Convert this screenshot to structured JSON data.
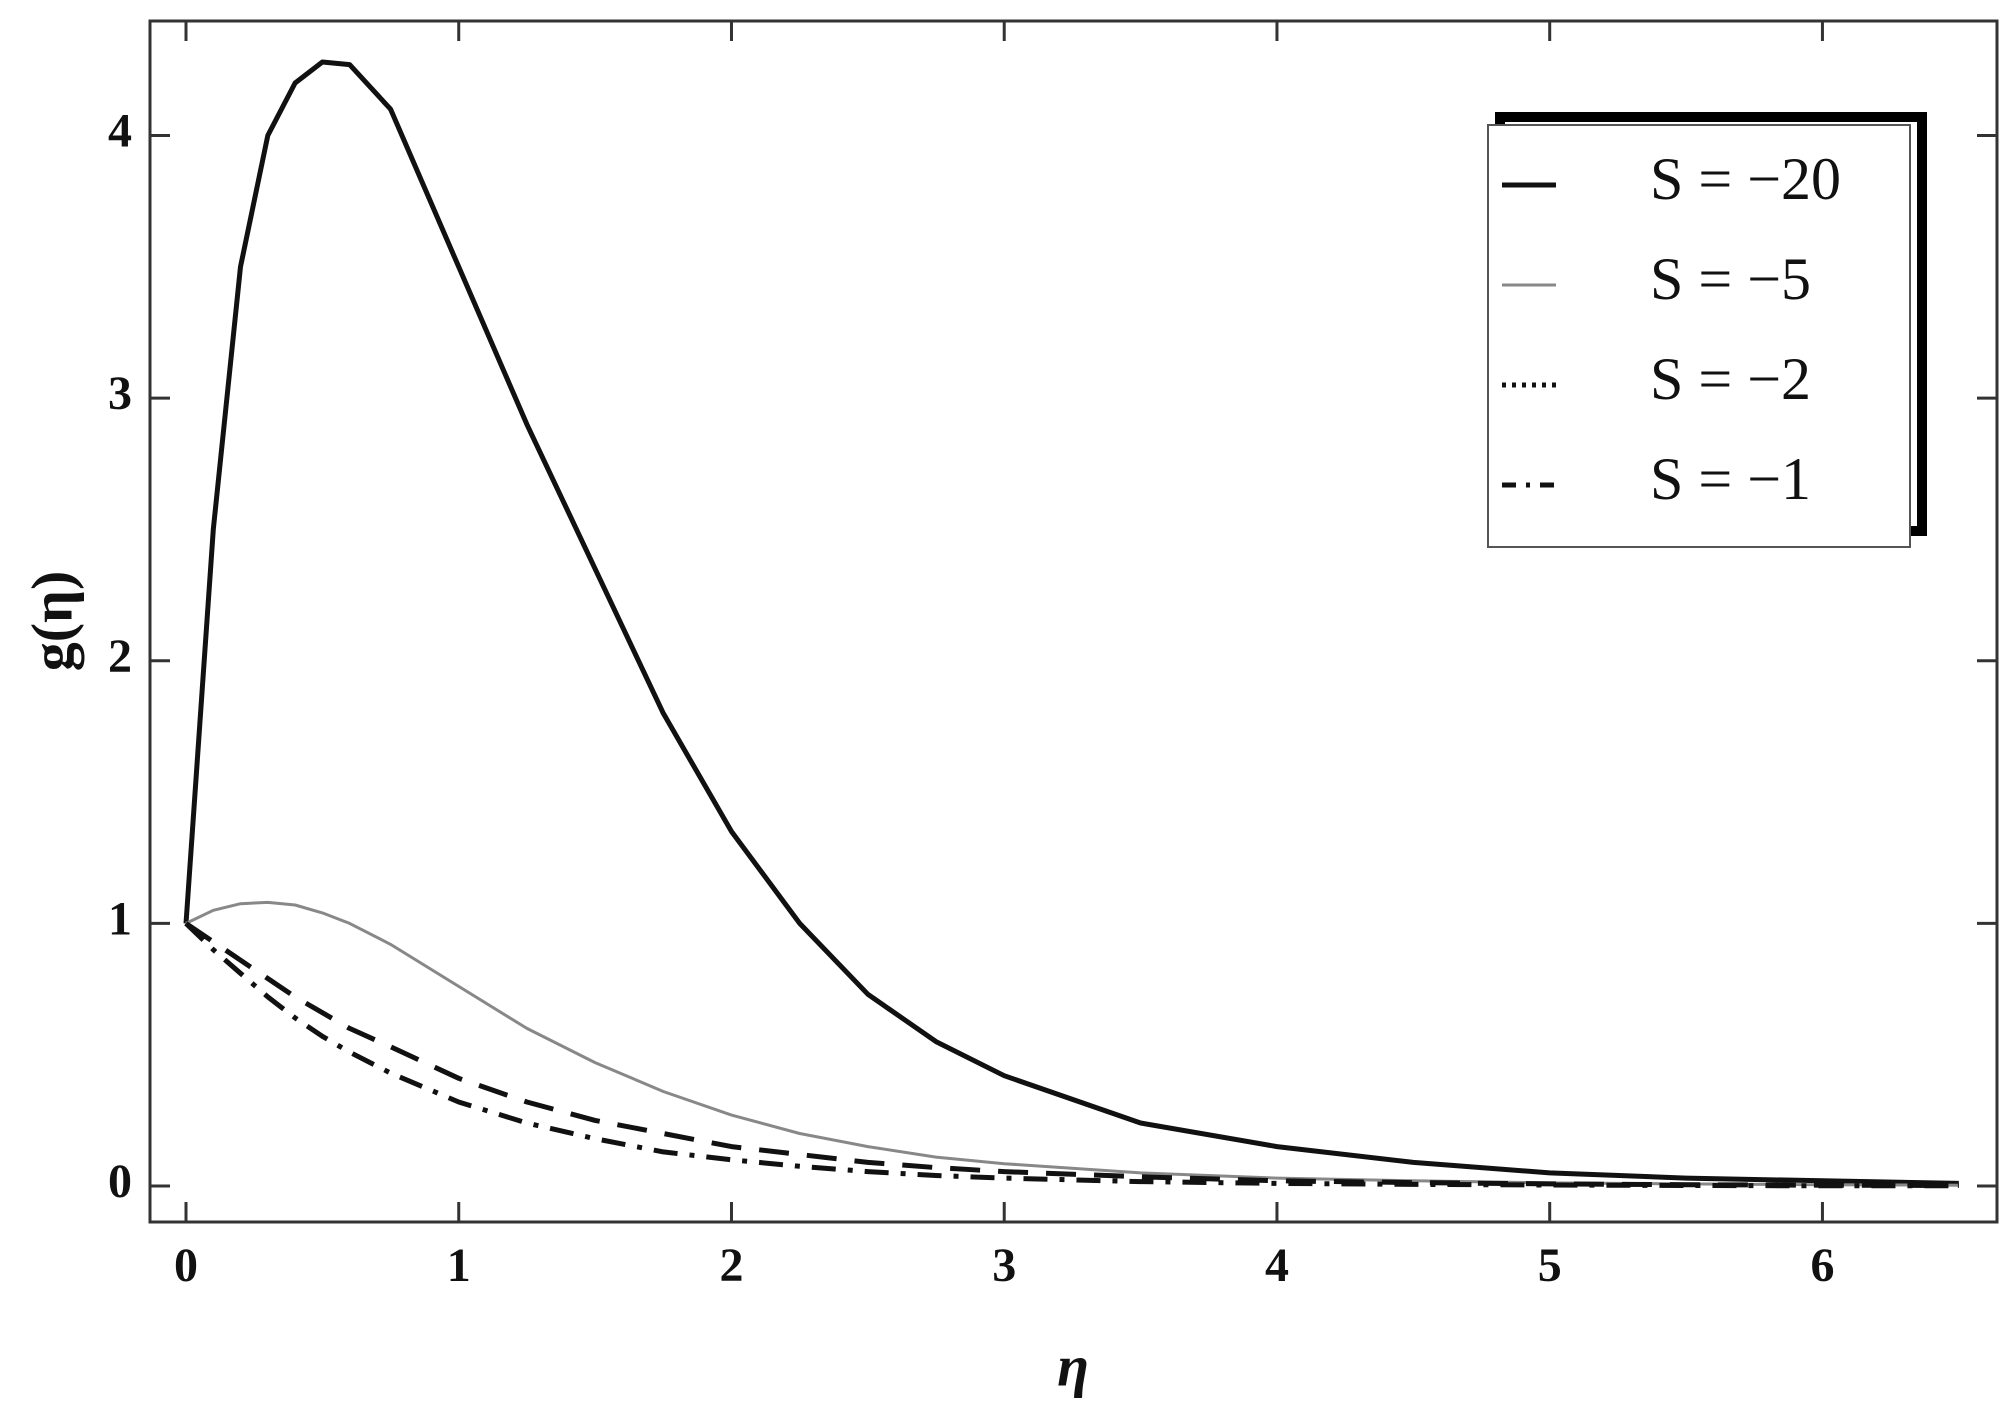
{
  "chart_data": {
    "type": "line",
    "x_label": "η",
    "y_label": "g(η)",
    "x": [
      0,
      0.1,
      0.2,
      0.3,
      0.4,
      0.5,
      0.6,
      0.75,
      1,
      1.25,
      1.5,
      1.75,
      2,
      2.25,
      2.5,
      2.75,
      3,
      3.5,
      4,
      4.5,
      5,
      5.5,
      6,
      6.5
    ],
    "series": [
      {
        "name": "S = −20",
        "color": "#111111",
        "style": "solid",
        "width": 5,
        "values": [
          1,
          2.5,
          3.5,
          4.0,
          4.2,
          4.28,
          4.27,
          4.1,
          3.5,
          2.9,
          2.35,
          1.8,
          1.35,
          1.0,
          0.73,
          0.55,
          0.42,
          0.24,
          0.15,
          0.09,
          0.05,
          0.03,
          0.02,
          0.01
        ]
      },
      {
        "name": "S = −5",
        "color": "#888888",
        "style": "solid",
        "width": 3,
        "values": [
          1,
          1.05,
          1.075,
          1.08,
          1.07,
          1.04,
          1.0,
          0.92,
          0.76,
          0.6,
          0.47,
          0.36,
          0.27,
          0.2,
          0.15,
          0.11,
          0.085,
          0.05,
          0.03,
          0.02,
          0.012,
          0.008,
          0.005,
          0.003
        ]
      },
      {
        "name": "S = −2",
        "color": "#111111",
        "style": "dashed",
        "width": 5,
        "values": [
          1,
          0.93,
          0.86,
          0.79,
          0.72,
          0.66,
          0.6,
          0.53,
          0.41,
          0.32,
          0.25,
          0.2,
          0.15,
          0.12,
          0.09,
          0.07,
          0.055,
          0.035,
          0.02,
          0.013,
          0.008,
          0.005,
          0.003,
          0.002
        ]
      },
      {
        "name": "S = −1",
        "color": "#111111",
        "style": "dashdot",
        "width": 5,
        "values": [
          1,
          0.9,
          0.81,
          0.72,
          0.64,
          0.57,
          0.51,
          0.43,
          0.32,
          0.24,
          0.18,
          0.13,
          0.1,
          0.075,
          0.055,
          0.04,
          0.03,
          0.017,
          0.01,
          0.006,
          0.004,
          0.002,
          0.001,
          0.001
        ]
      }
    ],
    "xlim": [
      -0.132,
      6.64
    ],
    "ylim": [
      -0.137,
      4.436
    ],
    "xticks": [
      0,
      1,
      2,
      3,
      4,
      5,
      6
    ],
    "yticks": [
      0,
      1,
      2,
      3,
      4
    ],
    "grid": false,
    "legend": "upper right"
  }
}
